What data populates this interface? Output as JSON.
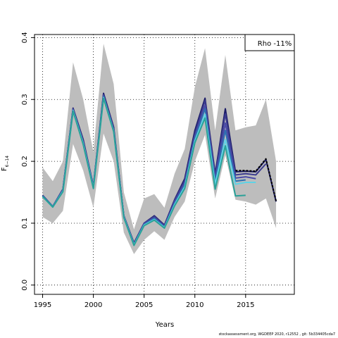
{
  "chart_data": {
    "type": "line",
    "xlabel": "Years",
    "ylabel": "F",
    "ylabel_subscript": "6−14",
    "xlim": [
      1994.2,
      2019.8
    ],
    "ylim": [
      -0.015,
      0.405
    ],
    "x_ticks": [
      1995,
      2000,
      2005,
      2010,
      2015
    ],
    "y_ticks": [
      0.0,
      0.1,
      0.2,
      0.3,
      0.4
    ],
    "x_tick_labels": [
      "1995",
      "2000",
      "2005",
      "2010",
      "2015"
    ],
    "y_tick_labels": [
      "0.0",
      "0.1",
      "0.2",
      "0.3",
      "0.4"
    ],
    "grid": true,
    "legend": {
      "text": "Rho -11%",
      "placement": "top-right"
    },
    "ribbon": {
      "color": "#bdbdbd",
      "x": [
        1995,
        1996,
        1997,
        1998,
        1999,
        2000,
        2001,
        2002,
        2003,
        2004,
        2005,
        2006,
        2007,
        2008,
        2009,
        2010,
        2011,
        2012,
        2013,
        2014,
        2015,
        2016,
        2017,
        2018
      ],
      "upper": [
        0.19,
        0.168,
        0.2,
        0.36,
        0.3,
        0.215,
        0.39,
        0.325,
        0.15,
        0.09,
        0.14,
        0.147,
        0.125,
        0.18,
        0.22,
        0.32,
        0.383,
        0.25,
        0.372,
        0.25,
        0.255,
        0.258,
        0.3,
        0.2
      ],
      "lower": [
        0.11,
        0.1,
        0.12,
        0.228,
        0.185,
        0.125,
        0.245,
        0.2,
        0.085,
        0.05,
        0.073,
        0.087,
        0.073,
        0.11,
        0.135,
        0.2,
        0.243,
        0.14,
        0.21,
        0.138,
        0.135,
        0.13,
        0.14,
        0.092
      ]
    },
    "series": [
      {
        "color": "#1a1a66",
        "dashed": false,
        "x": [
          1995,
          1996,
          1997,
          1998,
          1999,
          2000,
          2001,
          2002,
          2003,
          2004,
          2005,
          2006,
          2007,
          2008,
          2009,
          2010,
          2011,
          2012,
          2013,
          2014,
          2015,
          2016,
          2017,
          2018
        ],
        "values": [
          0.145,
          0.127,
          0.155,
          0.286,
          0.235,
          0.16,
          0.31,
          0.255,
          0.112,
          0.068,
          0.1,
          0.112,
          0.097,
          0.138,
          0.172,
          0.25,
          0.302,
          0.18,
          0.285,
          0.183,
          0.184,
          0.183,
          0.203,
          0.135
        ]
      },
      {
        "color": "#3b3b8f",
        "dashed": false,
        "x": [
          1995,
          1996,
          1997,
          1998,
          1999,
          2000,
          2001,
          2002,
          2003,
          2004,
          2005,
          2006,
          2007,
          2008,
          2009,
          2010,
          2011,
          2012,
          2013,
          2014,
          2015,
          2016,
          2017
        ],
        "values": [
          0.145,
          0.127,
          0.155,
          0.285,
          0.233,
          0.16,
          0.308,
          0.253,
          0.112,
          0.067,
          0.1,
          0.111,
          0.096,
          0.137,
          0.169,
          0.245,
          0.298,
          0.177,
          0.277,
          0.178,
          0.18,
          0.178,
          0.196
        ]
      },
      {
        "color": "#4a4aa8",
        "dashed": false,
        "x": [
          1995,
          1996,
          1997,
          1998,
          1999,
          2000,
          2001,
          2002,
          2003,
          2004,
          2005,
          2006,
          2007,
          2008,
          2009,
          2010,
          2011,
          2012,
          2013,
          2014,
          2015,
          2016
        ],
        "values": [
          0.144,
          0.127,
          0.154,
          0.284,
          0.231,
          0.159,
          0.306,
          0.251,
          0.111,
          0.066,
          0.099,
          0.109,
          0.095,
          0.134,
          0.165,
          0.24,
          0.29,
          0.172,
          0.262,
          0.173,
          0.175,
          0.172
        ]
      },
      {
        "color": "#2e6fb0",
        "dashed": false,
        "x": [
          1995,
          1996,
          1997,
          1998,
          1999,
          2000,
          2001,
          2002,
          2003,
          2004,
          2005,
          2006,
          2007,
          2008,
          2009,
          2010,
          2011,
          2012,
          2013,
          2014,
          2015
        ],
        "values": [
          0.144,
          0.127,
          0.153,
          0.283,
          0.23,
          0.158,
          0.305,
          0.25,
          0.11,
          0.066,
          0.098,
          0.108,
          0.094,
          0.132,
          0.162,
          0.237,
          0.285,
          0.168,
          0.25,
          0.168,
          0.17
        ]
      },
      {
        "color": "#5fd3e6",
        "dashed": false,
        "x": [
          1995,
          1996,
          1997,
          1998,
          1999,
          2000,
          2001,
          2002,
          2003,
          2004,
          2005,
          2006,
          2007,
          2008,
          2009,
          2010,
          2011,
          2012,
          2013,
          2014,
          2015,
          2016
        ],
        "values": [
          0.143,
          0.126,
          0.152,
          0.282,
          0.229,
          0.157,
          0.303,
          0.249,
          0.11,
          0.065,
          0.097,
          0.106,
          0.093,
          0.13,
          0.159,
          0.233,
          0.276,
          0.163,
          0.235,
          0.163,
          0.166,
          0.166
        ]
      },
      {
        "color": "#2aa198",
        "dashed": false,
        "x": [
          1995,
          1996,
          1997,
          1998,
          1999,
          2000,
          2001,
          2002,
          2003,
          2004,
          2005,
          2006,
          2007,
          2008,
          2009,
          2010,
          2011,
          2012,
          2013,
          2014,
          2015
        ],
        "values": [
          0.143,
          0.126,
          0.151,
          0.281,
          0.227,
          0.156,
          0.302,
          0.248,
          0.109,
          0.064,
          0.096,
          0.105,
          0.092,
          0.128,
          0.156,
          0.23,
          0.27,
          0.155,
          0.225,
          0.144,
          0.145
        ]
      },
      {
        "color": "#000000",
        "dashed": true,
        "x": [
          2014,
          2015,
          2016,
          2017,
          2018
        ],
        "values": [
          0.185,
          0.185,
          0.184,
          0.204,
          0.136
        ]
      }
    ]
  },
  "footer_text": "stockassessment.org, WGDEEP 2020, r12552 , git: 5b334405cda7"
}
